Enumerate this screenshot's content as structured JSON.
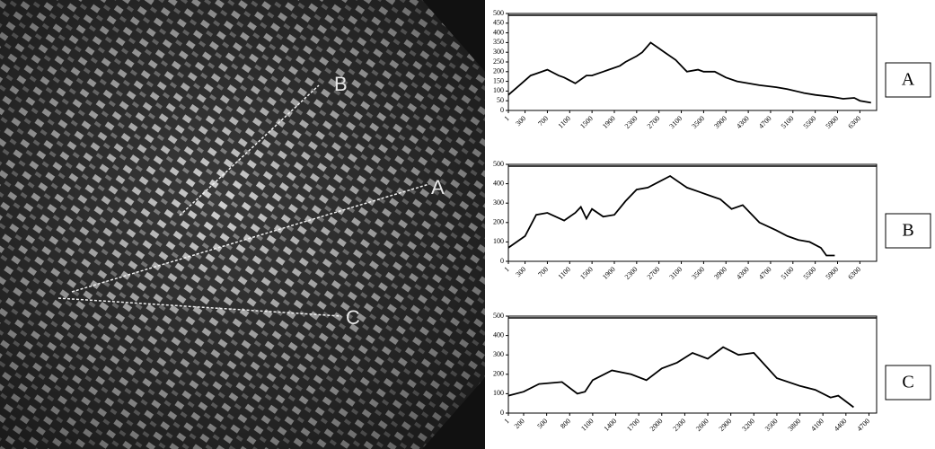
{
  "map": {
    "labels": [
      "A",
      "B",
      "C"
    ]
  },
  "chart_data": [
    {
      "type": "line",
      "title": "A",
      "color": "#000000",
      "x": [
        1,
        200,
        400,
        500,
        700,
        900,
        1000,
        1200,
        1400,
        1500,
        1700,
        1800,
        2000,
        2100,
        2300,
        2400,
        2550,
        2700,
        2800,
        3000,
        3200,
        3400,
        3500,
        3700,
        3900,
        4100,
        4300,
        4500,
        4800,
        5000,
        5300,
        5500,
        5800,
        6000,
        6200,
        6300,
        6500
      ],
      "values": [
        80,
        130,
        180,
        190,
        210,
        180,
        170,
        140,
        180,
        180,
        200,
        210,
        230,
        250,
        280,
        300,
        350,
        320,
        300,
        260,
        200,
        210,
        200,
        200,
        170,
        150,
        140,
        130,
        120,
        110,
        90,
        80,
        70,
        60,
        65,
        50,
        40
      ],
      "xlim": [
        1,
        6600
      ],
      "ylim": [
        0,
        500
      ],
      "xticks": [
        1,
        300,
        700,
        1100,
        1500,
        1900,
        2300,
        2700,
        3100,
        3500,
        3900,
        4300,
        4700,
        5100,
        5500,
        5900,
        6300
      ],
      "yticks": [
        0,
        50,
        100,
        150,
        200,
        250,
        300,
        350,
        400,
        450,
        500
      ]
    },
    {
      "type": "line",
      "title": "B",
      "color": "#000000",
      "x": [
        1,
        300,
        500,
        700,
        1000,
        1200,
        1300,
        1400,
        1500,
        1700,
        1900,
        2100,
        2300,
        2500,
        2700,
        2900,
        3200,
        3400,
        3600,
        3800,
        4000,
        4200,
        4500,
        4800,
        5000,
        5200,
        5400,
        5600,
        5700,
        5850
      ],
      "values": [
        70,
        130,
        240,
        250,
        210,
        250,
        280,
        220,
        270,
        230,
        240,
        310,
        370,
        380,
        410,
        440,
        380,
        360,
        340,
        320,
        270,
        290,
        200,
        160,
        130,
        110,
        100,
        70,
        30,
        30
      ],
      "xlim": [
        1,
        6600
      ],
      "ylim": [
        0,
        500
      ],
      "xticks": [
        1,
        300,
        700,
        1100,
        1500,
        1900,
        2300,
        2700,
        3100,
        3500,
        3900,
        4300,
        4700,
        5100,
        5500,
        5900,
        6300
      ],
      "yticks": [
        0,
        100,
        200,
        300,
        400,
        500
      ]
    },
    {
      "type": "line",
      "title": "C",
      "color": "#000000",
      "x": [
        1,
        200,
        400,
        700,
        900,
        1000,
        1100,
        1350,
        1600,
        1800,
        2000,
        2200,
        2400,
        2600,
        2800,
        3000,
        3200,
        3500,
        3800,
        4000,
        4200,
        4300,
        4500
      ],
      "values": [
        90,
        110,
        150,
        160,
        100,
        110,
        170,
        220,
        200,
        170,
        230,
        260,
        310,
        280,
        340,
        300,
        310,
        180,
        140,
        120,
        80,
        90,
        30
      ],
      "xlim": [
        1,
        4800
      ],
      "ylim": [
        0,
        500
      ],
      "xticks": [
        1,
        200,
        500,
        800,
        1100,
        1400,
        1700,
        2000,
        2300,
        2600,
        2900,
        3200,
        3500,
        3800,
        4100,
        4400,
        4700
      ],
      "yticks": [
        0,
        100,
        200,
        300,
        400,
        500
      ]
    }
  ]
}
